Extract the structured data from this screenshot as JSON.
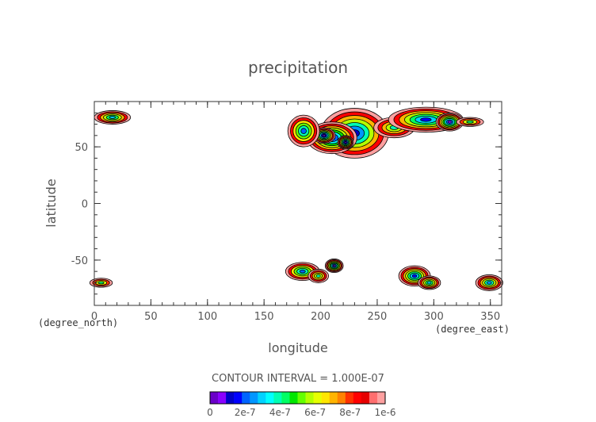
{
  "chart_data": {
    "type": "contour",
    "title": "precipitation",
    "xlabel": "longitude",
    "ylabel": "latitude",
    "x_units": "(degree_east)",
    "y_units": "(degree_north)",
    "xlim": [
      0,
      360
    ],
    "ylim": [
      -90,
      90
    ],
    "x_ticks": [
      0,
      50,
      100,
      150,
      200,
      250,
      300,
      350
    ],
    "y_ticks": [
      -50,
      0,
      50
    ],
    "contour_interval_label": "CONTOUR INTERVAL = 1.000E-07",
    "colorbar": {
      "ticks": [
        "0",
        "2e-7",
        "4e-7",
        "6e-7",
        "8e-7",
        "1e-6"
      ],
      "colors": [
        "#6a00c8",
        "#8a00ff",
        "#0000c8",
        "#0000ff",
        "#0064ff",
        "#0096ff",
        "#00d2ff",
        "#00ffff",
        "#00ffb4",
        "#00ff64",
        "#00e600",
        "#64ff00",
        "#b4ff00",
        "#e6ff00",
        "#ffe600",
        "#ffb400",
        "#ff8200",
        "#ff3200",
        "#ff0000",
        "#e60000",
        "#ff6e6e",
        "#ffa0a0"
      ]
    },
    "regions": [
      {
        "lon": 230,
        "lat": 62,
        "rlon": 30,
        "rlat": 22,
        "peak": 0.9
      },
      {
        "lon": 210,
        "lat": 58,
        "rlon": 22,
        "rlat": 14,
        "peak": 0.95
      },
      {
        "lon": 203,
        "lat": 60,
        "rlon": 10,
        "rlat": 7,
        "peak": 1.0
      },
      {
        "lon": 222,
        "lat": 54,
        "rlon": 7,
        "rlat": 6,
        "peak": 1.0
      },
      {
        "lon": 185,
        "lat": 64,
        "rlon": 14,
        "rlat": 14,
        "peak": 0.8
      },
      {
        "lon": 265,
        "lat": 67,
        "rlon": 18,
        "rlat": 9,
        "peak": 0.6
      },
      {
        "lon": 293,
        "lat": 74,
        "rlon": 33,
        "rlat": 11,
        "peak": 0.85
      },
      {
        "lon": 314,
        "lat": 72,
        "rlon": 12,
        "rlat": 8,
        "peak": 0.95
      },
      {
        "lon": 332,
        "lat": 72,
        "rlon": 12,
        "rlat": 4,
        "peak": 0.55
      },
      {
        "lon": 16,
        "lat": 76,
        "rlon": 16,
        "rlat": 6,
        "peak": 0.7
      },
      {
        "lon": 184,
        "lat": -60,
        "rlon": 15,
        "rlat": 8,
        "peak": 0.8
      },
      {
        "lon": 212,
        "lat": -55,
        "rlon": 8,
        "rlat": 6,
        "peak": 0.95
      },
      {
        "lon": 198,
        "lat": -64,
        "rlon": 9,
        "rlat": 6,
        "peak": 0.6
      },
      {
        "lon": 283,
        "lat": -64,
        "rlon": 14,
        "rlat": 9,
        "peak": 0.85
      },
      {
        "lon": 296,
        "lat": -70,
        "rlon": 10,
        "rlat": 6,
        "peak": 0.7
      },
      {
        "lon": 349,
        "lat": -70,
        "rlon": 12,
        "rlat": 7,
        "peak": 0.75
      },
      {
        "lon": 6,
        "lat": -70,
        "rlon": 10,
        "rlat": 4,
        "peak": 0.55
      }
    ]
  }
}
